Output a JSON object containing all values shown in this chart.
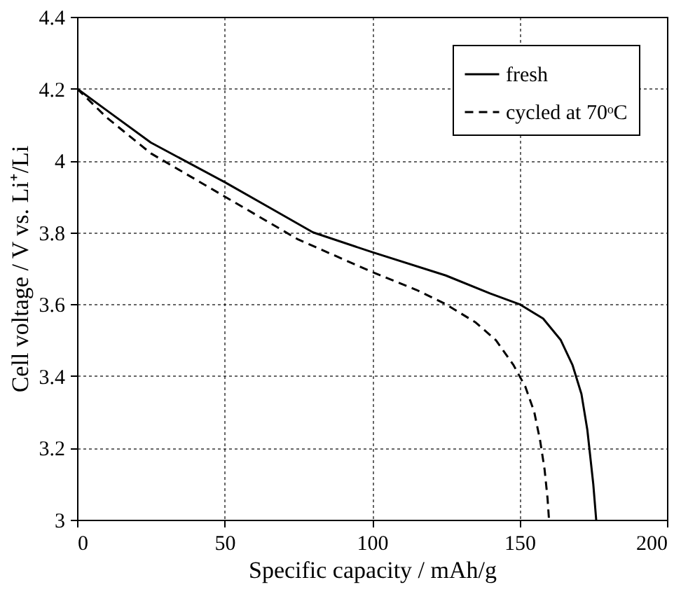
{
  "chart_data": {
    "type": "line",
    "xlabel": "Specific capacity / mAh/g",
    "ylabel": "Cell voltage / V vs. Li⁺/Li",
    "xlim": [
      0,
      200
    ],
    "xticks": [
      0,
      50,
      100,
      150,
      200
    ],
    "ylim": [
      3,
      4.4
    ],
    "yticks": [
      3,
      3.2,
      3.4,
      3.6,
      3.8,
      4,
      4.2,
      4.4
    ],
    "grid": true,
    "legend": "top right",
    "series": [
      {
        "name": "fresh",
        "color": "#000000",
        "line_style": "solid",
        "x": [
          0,
          10,
          25,
          50,
          65,
          80,
          100,
          125,
          140,
          150,
          158,
          164,
          168,
          171,
          173,
          175,
          176
        ],
        "values": [
          4.2,
          4.14,
          4.05,
          3.94,
          3.87,
          3.8,
          3.745,
          3.68,
          3.63,
          3.6,
          3.56,
          3.5,
          3.43,
          3.35,
          3.25,
          3.1,
          3.0
        ]
      },
      {
        "name": "cycled at 70ᵒC",
        "color": "#000000",
        "line_style": "dashed",
        "x": [
          0,
          10,
          25,
          50,
          75,
          100,
          115,
          125,
          135,
          142,
          148,
          152,
          155,
          157,
          158.5,
          159.5,
          160
        ],
        "values": [
          4.2,
          4.12,
          4.02,
          3.9,
          3.78,
          3.69,
          3.64,
          3.6,
          3.55,
          3.5,
          3.43,
          3.37,
          3.3,
          3.22,
          3.14,
          3.06,
          3.0
        ]
      }
    ]
  }
}
